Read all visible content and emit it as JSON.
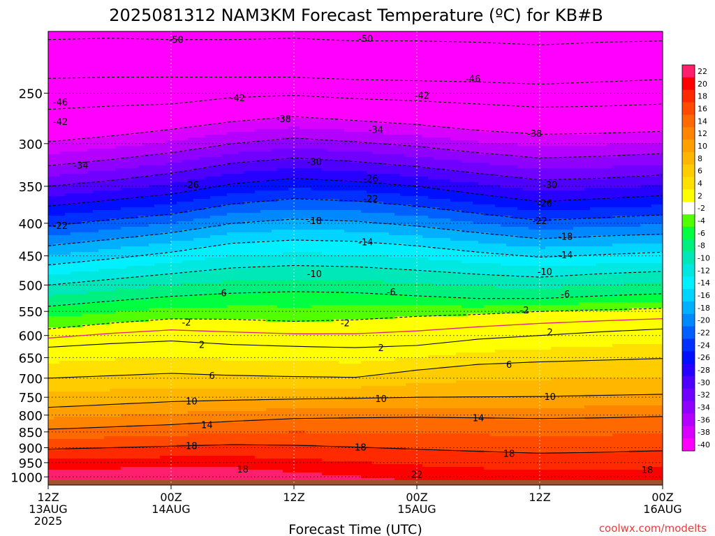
{
  "chart_data": {
    "type": "heatmap",
    "title": "2025081312 NAM3KM Forecast Temperature (ºC) for KB#B",
    "xlabel": "Forecast Time (UTC)",
    "ylabel": "",
    "credit": "coolwx.com/modelts",
    "y_scale": "log",
    "y_inverted": true,
    "ylim": [
      1030,
      200
    ],
    "xlim": [
      0,
      60
    ],
    "y_ticks": [
      250,
      300,
      350,
      400,
      450,
      500,
      550,
      600,
      650,
      700,
      750,
      800,
      850,
      900,
      950,
      1000
    ],
    "x_ticks": [
      {
        "x": 0,
        "lines": [
          "12Z",
          "13AUG",
          "2025"
        ]
      },
      {
        "x": 12,
        "lines": [
          "00Z",
          "14AUG"
        ]
      },
      {
        "x": 24,
        "lines": [
          "12Z"
        ]
      },
      {
        "x": 36,
        "lines": [
          "00Z",
          "15AUG"
        ]
      },
      {
        "x": 48,
        "lines": [
          "12Z"
        ]
      },
      {
        "x": 60,
        "lines": [
          "00Z",
          "16AUG"
        ]
      }
    ],
    "colorbar_labels": [
      "22",
      "20",
      "18",
      "16",
      "14",
      "12",
      "10",
      "8",
      "6",
      "4",
      "2",
      "-2",
      "-4",
      "-6",
      "-8",
      "-10",
      "-12",
      "-14",
      "-16",
      "-18",
      "-20",
      "-22",
      "-24",
      "-26",
      "-28",
      "-30",
      "-32",
      "-34",
      "-36",
      "-38",
      "-40"
    ],
    "colorbar_colors": [
      "#ff1f6d",
      "#ff0000",
      "#ff2a00",
      "#ff4a00",
      "#ff6a00",
      "#ff8400",
      "#ff9f00",
      "#ffb600",
      "#ffcc00",
      "#ffe000",
      "#ffff00",
      "#ffffff",
      "#52ff00",
      "#00ff40",
      "#00f080",
      "#00e8b8",
      "#00e8e0",
      "#00f0ff",
      "#00d4ff",
      "#00b0ff",
      "#0088ff",
      "#0060ff",
      "#0030ff",
      "#0010ff",
      "#2800ff",
      "#4e00ff",
      "#7000ff",
      "#9000ff",
      "#b400ff",
      "#d800ff",
      "#ff00ff"
    ],
    "grid": true,
    "x_hours": [
      0,
      6,
      12,
      18,
      24,
      30,
      36,
      42,
      48,
      54,
      60
    ],
    "isotherms": [
      {
        "t": -50,
        "p": [
          206,
          205,
          206,
          206,
          205,
          207,
          207,
          208,
          210,
          208,
          207
        ]
      },
      {
        "t": -46,
        "p": [
          237,
          236,
          236,
          236,
          236,
          238,
          239,
          240,
          242,
          240,
          238
        ]
      },
      {
        "t": -42,
        "p": [
          265,
          262,
          260,
          254,
          252,
          255,
          257,
          260,
          263,
          262,
          260
        ]
      },
      {
        "t": -38,
        "p": [
          298,
          292,
          285,
          277,
          272,
          276,
          280,
          286,
          290,
          289,
          287
        ]
      },
      {
        "t": -34,
        "p": [
          325,
          318,
          310,
          300,
          294,
          298,
          303,
          310,
          316,
          314,
          311
        ]
      },
      {
        "t": -30,
        "p": [
          350,
          343,
          334,
          322,
          316,
          320,
          326,
          334,
          342,
          340,
          336
        ]
      },
      {
        "t": -26,
        "p": [
          376,
          368,
          360,
          347,
          340,
          344,
          350,
          360,
          370,
          366,
          362
        ]
      },
      {
        "t": -22,
        "p": [
          404,
          395,
          387,
          373,
          366,
          369,
          376,
          386,
          396,
          392,
          388
        ]
      },
      {
        "t": -18,
        "p": [
          434,
          424,
          414,
          400,
          394,
          397,
          404,
          414,
          423,
          419,
          416
        ]
      },
      {
        "t": -14,
        "p": [
          465,
          455,
          444,
          430,
          425,
          427,
          434,
          444,
          452,
          448,
          444
        ]
      },
      {
        "t": -10,
        "p": [
          500,
          490,
          480,
          470,
          466,
          468,
          474,
          481,
          486,
          480,
          476
        ]
      },
      {
        "t": -6,
        "p": [
          540,
          530,
          521,
          515,
          512,
          514,
          520,
          525,
          525,
          520,
          516
        ]
      },
      {
        "t": -2,
        "p": [
          586,
          574,
          565,
          566,
          570,
          567,
          560,
          556,
          550,
          547,
          544
        ]
      },
      {
        "t": 2,
        "p": [
          626,
          618,
          612,
          620,
          624,
          627,
          622,
          608,
          600,
          592,
          586
        ]
      },
      {
        "t": 6,
        "p": [
          700,
          694,
          688,
          693,
          696,
          698,
          680,
          666,
          660,
          656,
          652
        ]
      },
      {
        "t": 10,
        "p": [
          778,
          770,
          762,
          758,
          755,
          753,
          750,
          749,
          748,
          745,
          742
        ]
      },
      {
        "t": 14,
        "p": [
          842,
          835,
          828,
          818,
          810,
          808,
          806,
          808,
          810,
          808,
          804
        ]
      },
      {
        "t": 18,
        "p": [
          905,
          900,
          895,
          890,
          892,
          898,
          905,
          912,
          918,
          915,
          910
        ]
      }
    ],
    "surface_pressure": 1012,
    "contour_labels": [
      {
        "text": "-50",
        "x": 12.5,
        "p": 206
      },
      {
        "text": "-50",
        "x": 31,
        "p": 205
      },
      {
        "text": "-46",
        "x": 1.2,
        "p": 258
      },
      {
        "text": "-46",
        "x": 41.5,
        "p": 237
      },
      {
        "text": "-42",
        "x": 1.2,
        "p": 277
      },
      {
        "text": "-42",
        "x": 18.5,
        "p": 254
      },
      {
        "text": "-42",
        "x": 36.5,
        "p": 252
      },
      {
        "text": "-38",
        "x": 23,
        "p": 274
      },
      {
        "text": "-38",
        "x": 47.5,
        "p": 289
      },
      {
        "text": "-34",
        "x": 3.2,
        "p": 324
      },
      {
        "text": "-34",
        "x": 32,
        "p": 285
      },
      {
        "text": "-30",
        "x": 26,
        "p": 320
      },
      {
        "text": "-30",
        "x": 49,
        "p": 348
      },
      {
        "text": "-26",
        "x": 14,
        "p": 348
      },
      {
        "text": "-26",
        "x": 31.5,
        "p": 340
      },
      {
        "text": "-26",
        "x": 48.5,
        "p": 372
      },
      {
        "text": "-22",
        "x": 1.2,
        "p": 403
      },
      {
        "text": "-22",
        "x": 31.5,
        "p": 366
      },
      {
        "text": "-22",
        "x": 48,
        "p": 396
      },
      {
        "text": "-18",
        "x": 26,
        "p": 396
      },
      {
        "text": "-18",
        "x": 50.5,
        "p": 419
      },
      {
        "text": "-14",
        "x": 31,
        "p": 428
      },
      {
        "text": "-14",
        "x": 50.5,
        "p": 448
      },
      {
        "text": "-10",
        "x": 26,
        "p": 480
      },
      {
        "text": "-10",
        "x": 48.5,
        "p": 476
      },
      {
        "text": "-6",
        "x": 17,
        "p": 514
      },
      {
        "text": "-6",
        "x": 33.5,
        "p": 512
      },
      {
        "text": "-6",
        "x": 50.5,
        "p": 516
      },
      {
        "text": "-2",
        "x": 13.5,
        "p": 572
      },
      {
        "text": "-2",
        "x": 29,
        "p": 573
      },
      {
        "text": "-2",
        "x": 46.5,
        "p": 547
      },
      {
        "text": "2",
        "x": 15,
        "p": 620
      },
      {
        "text": "2",
        "x": 32.5,
        "p": 627
      },
      {
        "text": "2",
        "x": 49,
        "p": 592
      },
      {
        "text": "6",
        "x": 16,
        "p": 693
      },
      {
        "text": "6",
        "x": 45,
        "p": 666
      },
      {
        "text": "10",
        "x": 14,
        "p": 760
      },
      {
        "text": "10",
        "x": 32.5,
        "p": 753
      },
      {
        "text": "10",
        "x": 49,
        "p": 748
      },
      {
        "text": "14",
        "x": 15.5,
        "p": 828
      },
      {
        "text": "14",
        "x": 42,
        "p": 808
      },
      {
        "text": "18",
        "x": 14,
        "p": 893
      },
      {
        "text": "18",
        "x": 30.5,
        "p": 898
      },
      {
        "text": "18",
        "x": 45,
        "p": 918
      },
      {
        "text": "18",
        "x": 19,
        "p": 972
      },
      {
        "text": "18",
        "x": 58.5,
        "p": 975
      },
      {
        "text": "22",
        "x": 36,
        "p": 990
      }
    ]
  }
}
